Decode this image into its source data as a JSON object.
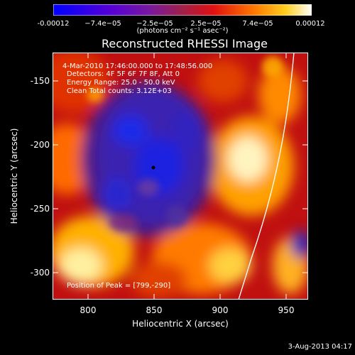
{
  "title": "Reconstructed RHESSI Image",
  "colorbar": {
    "tick_labels": [
      "-0.00012",
      "−7.4e−05",
      "−2.5e−05",
      "2.5e−05",
      "7.4e−05",
      "0.00012"
    ],
    "units": "(photons cm⁻² s⁻¹ asec⁻²)",
    "colormap": "blue-purple-red-yellow-white",
    "min": -0.00012,
    "max": 0.00012
  },
  "annotations": {
    "time_range": "4-Mar-2010 17:46:00.000 to 17:48:56.000",
    "detectors": "Detectors: 4F 5F 6F 7F 8F, Att 0",
    "energy_range": "Energy Range: 25.0 - 50.0 keV",
    "clean_counts": "Clean     Total counts: 3.12E+03",
    "peak_position": "Position of Peak = [799,-290]"
  },
  "axes": {
    "xlabel": "Heliocentric X (arcsec)",
    "ylabel": "Heliocentric Y (arcsec)",
    "xticks": [
      "800",
      "850",
      "900",
      "950"
    ],
    "yticks": [
      "-150",
      "-200",
      "-250",
      "-300"
    ],
    "xlim": [
      770,
      963
    ],
    "ylim": [
      -320,
      -134
    ]
  },
  "peak": {
    "x": 799,
    "y": -290
  },
  "footer_date": "3-Aug-2013 04:17",
  "colors": {
    "background": "#000000",
    "limb_line": "#ffffff",
    "text": "#ffffff"
  }
}
